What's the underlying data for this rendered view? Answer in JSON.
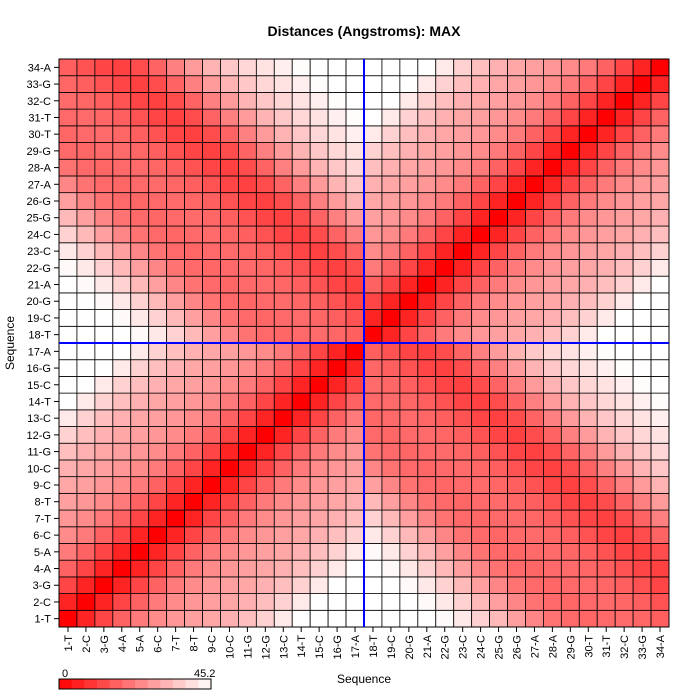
{
  "chart_data": {
    "type": "heatmap",
    "title": "Distances (Angstroms):  MAX",
    "xlabel": "Sequence",
    "ylabel": "Sequence",
    "categories": [
      "1-T",
      "2-C",
      "3-G",
      "4-A",
      "5-A",
      "6-C",
      "7-T",
      "8-T",
      "9-C",
      "10-C",
      "11-G",
      "12-G",
      "13-C",
      "14-T",
      "15-C",
      "16-G",
      "17-A",
      "18-T",
      "19-C",
      "20-G",
      "21-A",
      "22-G",
      "23-C",
      "24-C",
      "25-G",
      "26-G",
      "27-A",
      "28-A",
      "29-G",
      "30-T",
      "31-T",
      "32-C",
      "33-G",
      "34-A"
    ],
    "color_scale": {
      "min": 0,
      "max": 45.2,
      "low_color": "#ff0000",
      "high_color": "#ffffff"
    },
    "colorbar_labels": [
      "0",
      "45.2"
    ],
    "value_model": "Approximate Euclidean distance between two antiparallel duplex strands (residues 1-17 and 18-34); diagonal = 0",
    "crosshair": {
      "x_after": "17-A",
      "y_after": "17-A",
      "color": "#0000ff"
    },
    "grid": true
  }
}
